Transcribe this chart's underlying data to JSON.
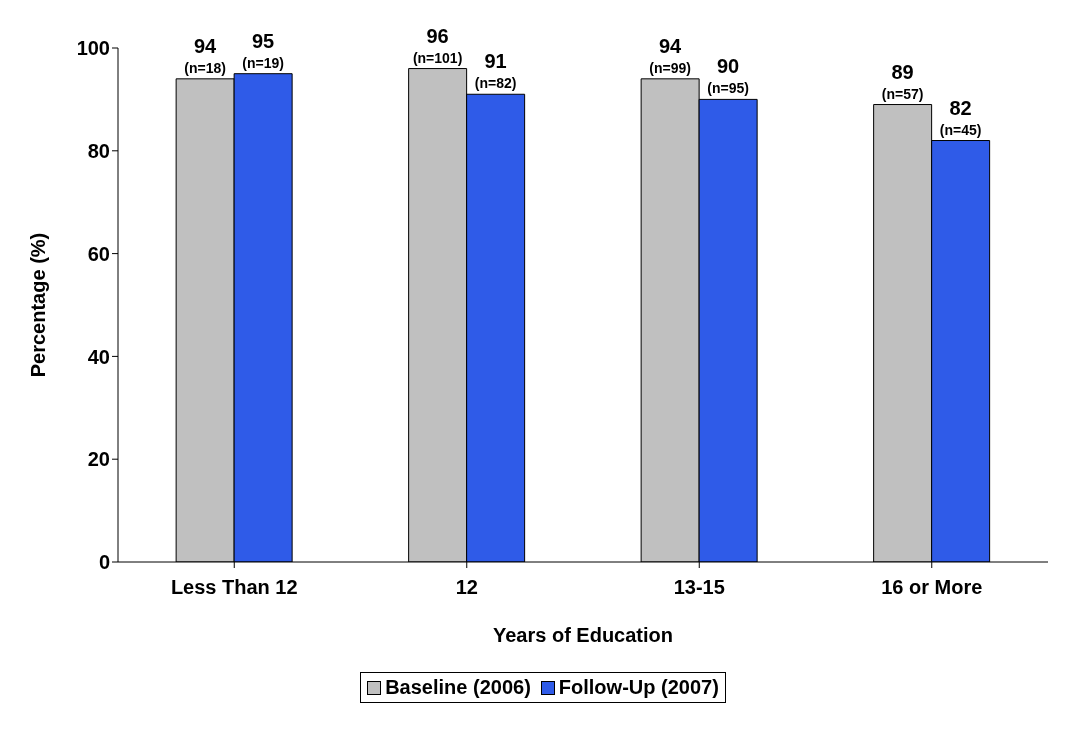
{
  "chart_data": {
    "type": "bar",
    "xlabel": "Years of Education",
    "ylabel": "Percentage (%)",
    "categories": [
      "Less Than 12",
      "12",
      "13-15",
      "16 or More"
    ],
    "series": [
      {
        "name": "Baseline (2006)",
        "color": "#c0c0c0",
        "values": [
          94,
          96,
          94,
          89
        ],
        "value_labels": [
          "94\n(n=18)",
          "96\n(n=101)",
          "94\n(n=99)",
          "89\n(n=57)"
        ]
      },
      {
        "name": "Follow-Up (2007)",
        "color": "#2f5be8",
        "values": [
          95,
          91,
          90,
          82
        ],
        "value_labels": [
          "95\n(n=19)",
          "91\n(n=82)",
          "90\n(n=95)",
          "82\n(n=45)"
        ]
      }
    ],
    "ylim": [
      0,
      100
    ],
    "yticks": [
      0,
      20,
      40,
      60,
      80,
      100
    ],
    "grid": false,
    "legend": "bottom"
  }
}
